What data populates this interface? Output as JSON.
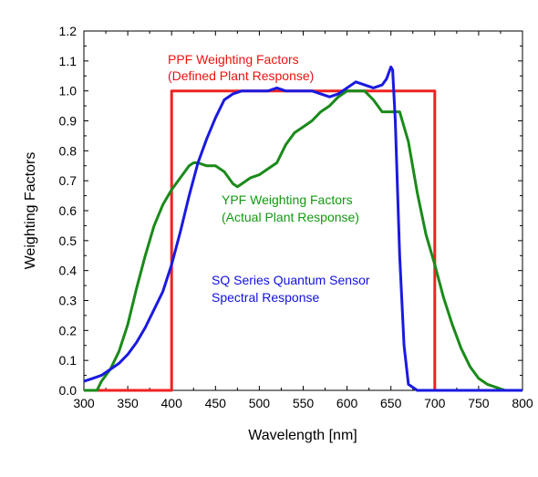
{
  "chart_data": {
    "type": "line",
    "title": "",
    "xlabel": "Wavelength [nm]",
    "ylabel": "Weighting Factors",
    "xlim": [
      300,
      800
    ],
    "ylim": [
      0,
      1.2
    ],
    "x_ticks": [
      "300",
      "350",
      "400",
      "450",
      "500",
      "550",
      "600",
      "650",
      "700",
      "750",
      "800"
    ],
    "y_ticks": [
      "0.0",
      "0.1",
      "0.2",
      "0.3",
      "0.4",
      "0.5",
      "0.6",
      "0.7",
      "0.8",
      "0.9",
      "1.0",
      "1.1",
      "1.2"
    ],
    "grid": false,
    "legend": "none",
    "annotations": [
      {
        "lines": [
          "PPF Weighting Factors",
          "(Defined Plant Response)"
        ],
        "color": "#ee1111"
      },
      {
        "lines": [
          "YPF Weighting Factors",
          "(Actual Plant Response)"
        ],
        "color": "#119911"
      },
      {
        "lines": [
          "SQ Series Quantum Sensor",
          "Spectral Response"
        ],
        "color": "#1111dd"
      }
    ],
    "series": [
      {
        "color": "#ee2222",
        "x": [
          300,
          400,
          400,
          700,
          700,
          800
        ],
        "y": [
          0,
          0,
          1.0,
          1.0,
          0,
          0
        ]
      },
      {
        "color": "#1a8a1a",
        "x": [
          300,
          315,
          320,
          330,
          340,
          350,
          360,
          370,
          380,
          390,
          400,
          410,
          420,
          425,
          430,
          440,
          450,
          460,
          470,
          475,
          480,
          490,
          500,
          510,
          520,
          525,
          530,
          540,
          550,
          560,
          570,
          580,
          590,
          600,
          610,
          620,
          630,
          640,
          650,
          655,
          660,
          670,
          680,
          690,
          700,
          710,
          720,
          730,
          740,
          750,
          760,
          770,
          780,
          790,
          800
        ],
        "y": [
          0,
          0,
          0.03,
          0.07,
          0.13,
          0.22,
          0.34,
          0.45,
          0.55,
          0.62,
          0.67,
          0.71,
          0.75,
          0.76,
          0.76,
          0.75,
          0.75,
          0.73,
          0.69,
          0.68,
          0.69,
          0.71,
          0.72,
          0.74,
          0.76,
          0.79,
          0.82,
          0.86,
          0.88,
          0.9,
          0.93,
          0.95,
          0.98,
          1.0,
          1.0,
          1.0,
          0.97,
          0.93,
          0.93,
          0.93,
          0.93,
          0.83,
          0.66,
          0.52,
          0.42,
          0.31,
          0.22,
          0.14,
          0.08,
          0.04,
          0.02,
          0.01,
          0.0,
          0.0,
          0.0
        ]
      },
      {
        "color": "#1a1ae0",
        "x": [
          300,
          310,
          320,
          330,
          340,
          350,
          360,
          370,
          380,
          390,
          400,
          410,
          420,
          430,
          440,
          450,
          460,
          470,
          480,
          490,
          500,
          510,
          520,
          530,
          540,
          550,
          560,
          570,
          580,
          590,
          600,
          610,
          620,
          630,
          640,
          645,
          650,
          652,
          655,
          660,
          665,
          670,
          680,
          690,
          700,
          800
        ],
        "y": [
          0.03,
          0.04,
          0.05,
          0.07,
          0.09,
          0.12,
          0.16,
          0.21,
          0.27,
          0.33,
          0.42,
          0.53,
          0.65,
          0.76,
          0.84,
          0.91,
          0.97,
          0.99,
          1.0,
          1.0,
          1.0,
          1.0,
          1.01,
          1.0,
          1.0,
          1.0,
          1.0,
          0.99,
          0.98,
          0.99,
          1.01,
          1.03,
          1.02,
          1.01,
          1.02,
          1.04,
          1.08,
          1.07,
          0.9,
          0.45,
          0.15,
          0.02,
          0.0,
          0.0,
          0.0,
          0.0
        ]
      }
    ]
  }
}
